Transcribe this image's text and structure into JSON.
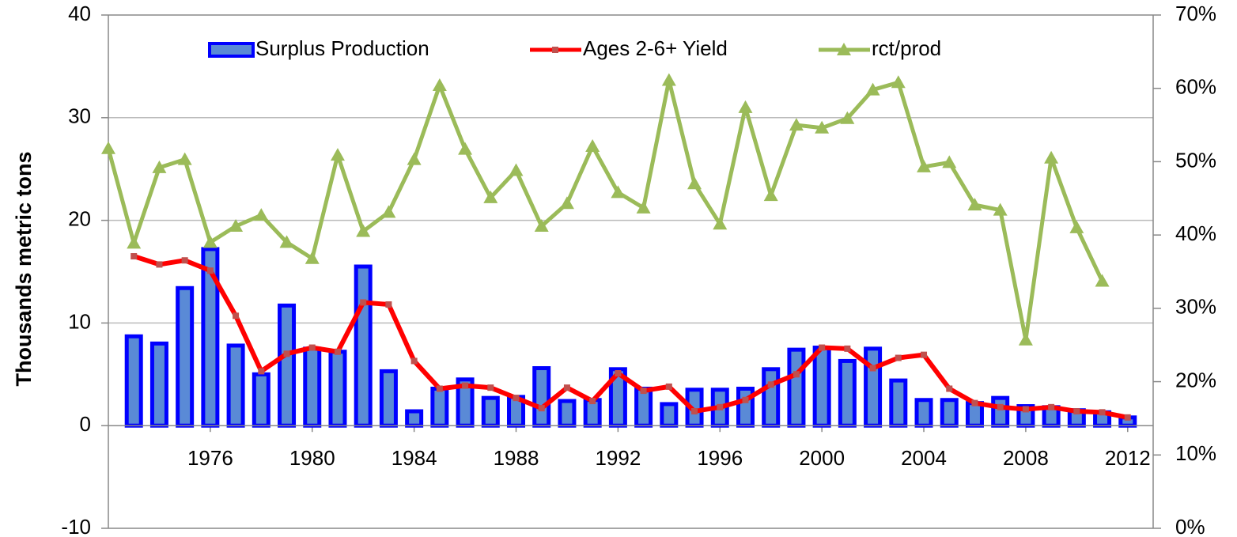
{
  "chart_data": {
    "type": "bar_line",
    "ylabel": "Thousands metric  tons",
    "x": [
      1972,
      1973,
      1974,
      1975,
      1976,
      1977,
      1978,
      1979,
      1980,
      1981,
      1982,
      1983,
      1984,
      1985,
      1986,
      1987,
      1988,
      1989,
      1990,
      1991,
      1992,
      1993,
      1994,
      1995,
      1996,
      1997,
      1998,
      1999,
      2000,
      2001,
      2002,
      2003,
      2004,
      2005,
      2006,
      2007,
      2008,
      2009,
      2010,
      2011,
      2012
    ],
    "xlim": [
      1972,
      2013
    ],
    "xticks": [
      1976,
      1980,
      1984,
      1988,
      1992,
      1996,
      2000,
      2004,
      2008,
      2012
    ],
    "ylim": [
      -10,
      40
    ],
    "yticks": [
      -10,
      0,
      10,
      20,
      30,
      40
    ],
    "y2lim": [
      0,
      70
    ],
    "y2ticks": [
      {
        "value": 0,
        "label": "0%"
      },
      {
        "value": 10,
        "label": "10%"
      },
      {
        "value": 20,
        "label": "20%"
      },
      {
        "value": 30,
        "label": "30%"
      },
      {
        "value": 40,
        "label": "40%"
      },
      {
        "value": 50,
        "label": "50%"
      },
      {
        "value": 60,
        "label": "60%"
      },
      {
        "value": 70,
        "label": "70%"
      }
    ],
    "grid": true,
    "legend": "top",
    "series": [
      {
        "name": "Surplus Production",
        "kind": "bar",
        "color": "#0000ff",
        "values": [
          null,
          8.7,
          8,
          13.4,
          17.2,
          7.8,
          5,
          11.7,
          7.5,
          7.2,
          15.5,
          5.3,
          1.4,
          3.6,
          4.5,
          2.7,
          2.8,
          5.6,
          2.4,
          2.5,
          5.5,
          3.6,
          2.1,
          3.5,
          3.5,
          3.6,
          5.5,
          7.4,
          7.6,
          6.3,
          7.5,
          4.4,
          2.5,
          2.5,
          2.2,
          2.7,
          1.9,
          1.8,
          1.5,
          1.3,
          0.8
        ]
      },
      {
        "name": "Ages 2-6+ Yield",
        "kind": "line",
        "color": "#ff0000",
        "marker": "square",
        "values": [
          null,
          16.5,
          15.7,
          16.1,
          15.1,
          10.7,
          5.3,
          7.0,
          7.6,
          7.2,
          12.0,
          11.8,
          6.3,
          3.6,
          3.9,
          3.7,
          2.7,
          1.7,
          3.7,
          2.4,
          5.1,
          3.4,
          3.8,
          1.4,
          1.8,
          2.5,
          4.0,
          5.0,
          7.6,
          7.5,
          5.6,
          6.6,
          6.9,
          3.6,
          2.2,
          1.8,
          1.6,
          1.8,
          1.4,
          1.3,
          0.8
        ]
      },
      {
        "name": "rct/prod",
        "kind": "line",
        "color": "#9bbb59",
        "marker": "triangle",
        "axis": "y2",
        "values": [
          51.8,
          38.9,
          49.2,
          50.3,
          39,
          41.2,
          42.7,
          39,
          36.8,
          50.9,
          40.5,
          43.1,
          50.3,
          60.4,
          51.7,
          45.1,
          48.8,
          41.2,
          44.3,
          52.1,
          45.8,
          43.7,
          61.1,
          47,
          41.5,
          57.4,
          45.4,
          55,
          54.6,
          55.9,
          59.8,
          60.8,
          49.3,
          49.9,
          44.1,
          43.4,
          25.7,
          50.5,
          41,
          33.7,
          null
        ]
      }
    ]
  }
}
